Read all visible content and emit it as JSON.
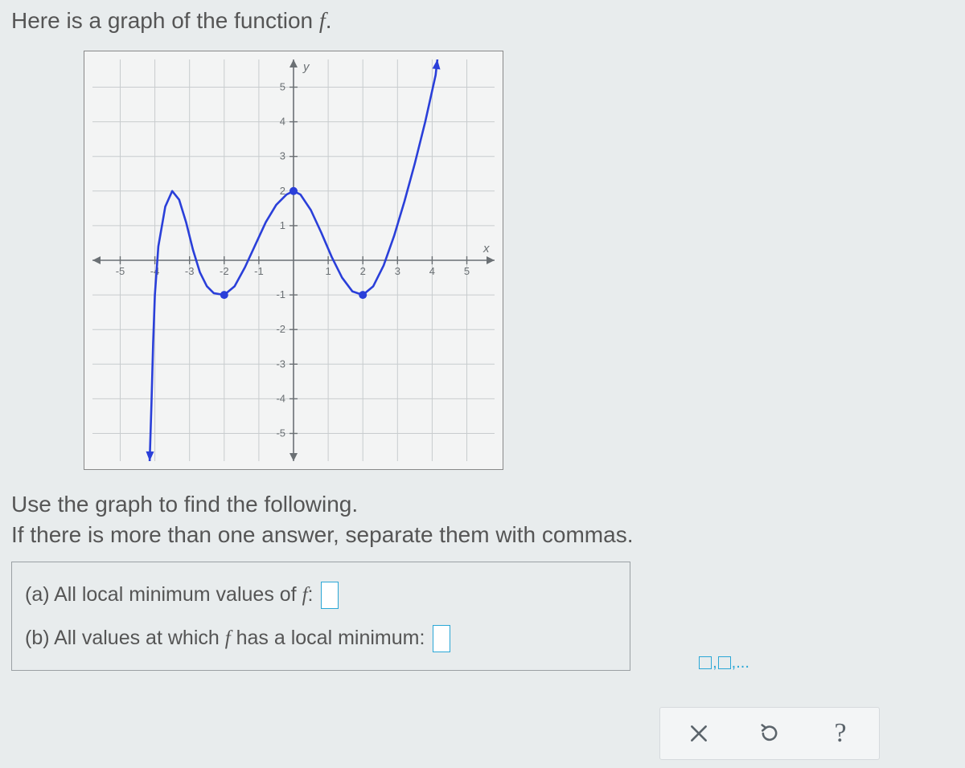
{
  "prompt": {
    "pre": "Here is a graph of the function ",
    "fvar": "f",
    "post": "."
  },
  "instructions": {
    "line1": "Use the graph to find the following.",
    "line2": "If there is more than one answer, separate them with commas."
  },
  "questions": {
    "a": {
      "label_pre": "(a) All local minimum values of ",
      "fvar": "f",
      "label_post": ":"
    },
    "b": {
      "label_pre": "(b) All values at which ",
      "fvar": "f",
      "label_post": " has a local minimum:"
    }
  },
  "hint_button": {
    "text": ",...",
    "boxes": 2
  },
  "toolbar": {
    "clear_title": "Clear",
    "reset_title": "Reset",
    "help_title": "Help",
    "help_glyph": "?"
  },
  "graph": {
    "xmin": -5.8,
    "xmax": 5.8,
    "ymin": -5.8,
    "ymax": 5.8,
    "xticks": [
      -5,
      -4,
      -3,
      -2,
      -1,
      1,
      2,
      3,
      4,
      5
    ],
    "yticks": [
      -5,
      -4,
      -3,
      -2,
      -1,
      1,
      2,
      3,
      4,
      5
    ],
    "x_axis_label": "x",
    "y_axis_label": "y",
    "grid_color": "#c8ccce",
    "axis_color": "#6b7074",
    "curve_color": "#2a3fd9",
    "curve_width": 2.6,
    "background": "#f3f4f4",
    "tick_font_size": 13,
    "tick_color": "#6b7074",
    "marker_radius": 5,
    "curve_points": [
      [
        -4.15,
        -5.8
      ],
      [
        -4.1,
        -4.2
      ],
      [
        -4.05,
        -2.4
      ],
      [
        -4.0,
        -1.0
      ],
      [
        -3.9,
        0.4
      ],
      [
        -3.7,
        1.55
      ],
      [
        -3.5,
        2.0
      ],
      [
        -3.3,
        1.75
      ],
      [
        -3.1,
        1.1
      ],
      [
        -2.9,
        0.3
      ],
      [
        -2.7,
        -0.35
      ],
      [
        -2.5,
        -0.75
      ],
      [
        -2.3,
        -0.95
      ],
      [
        -2.0,
        -1.0
      ],
      [
        -1.7,
        -0.75
      ],
      [
        -1.4,
        -0.2
      ],
      [
        -1.1,
        0.45
      ],
      [
        -0.8,
        1.1
      ],
      [
        -0.5,
        1.6
      ],
      [
        -0.2,
        1.9
      ],
      [
        0.0,
        2.0
      ],
      [
        0.2,
        1.9
      ],
      [
        0.5,
        1.45
      ],
      [
        0.8,
        0.8
      ],
      [
        1.1,
        0.1
      ],
      [
        1.4,
        -0.5
      ],
      [
        1.7,
        -0.9
      ],
      [
        2.0,
        -1.0
      ],
      [
        2.3,
        -0.75
      ],
      [
        2.6,
        -0.15
      ],
      [
        2.9,
        0.7
      ],
      [
        3.2,
        1.7
      ],
      [
        3.5,
        2.8
      ],
      [
        3.8,
        4.0
      ],
      [
        4.0,
        4.9
      ],
      [
        4.1,
        5.35
      ],
      [
        4.15,
        5.8
      ]
    ],
    "markers": [
      {
        "x": -2,
        "y": -1
      },
      {
        "x": 0,
        "y": 2
      },
      {
        "x": 2,
        "y": -1
      }
    ],
    "arrow_start": true,
    "arrow_end": true
  }
}
